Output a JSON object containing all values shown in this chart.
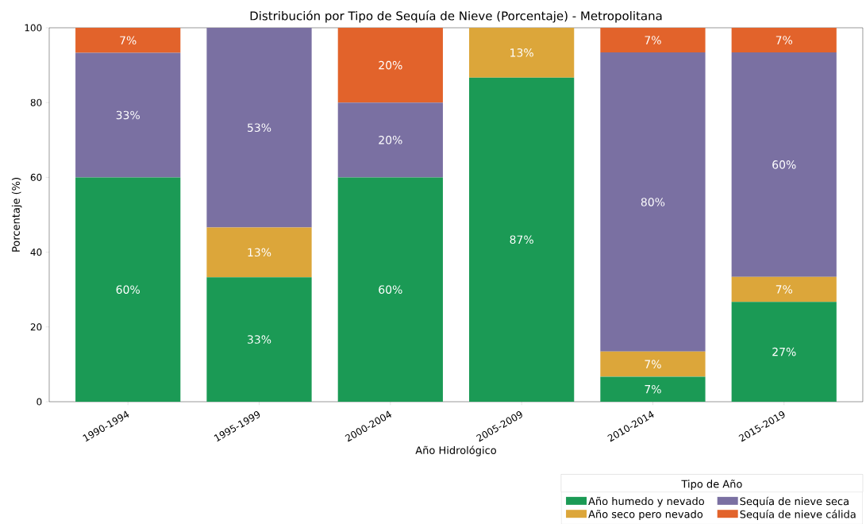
{
  "chart_data": {
    "type": "bar",
    "stacked": true,
    "title": "Distribución por Tipo de Sequía de Nieve (Porcentaje) - Metropolitana",
    "xlabel": "Año Hidrológico",
    "ylabel": "Porcentaje (%)",
    "legend_title": "Tipo de Año",
    "categories": [
      "1990-1994",
      "1995-1999",
      "2000-2004",
      "2005-2009",
      "2010-2014",
      "2015-2019"
    ],
    "series": [
      {
        "name": "Año humedo y nevado",
        "color": "#1b9a55",
        "values": [
          60,
          33.3,
          60,
          86.7,
          6.7,
          26.7
        ],
        "value_labels": [
          "60%",
          "33%",
          "60%",
          "87%",
          "7%",
          "27%"
        ]
      },
      {
        "name": "Año seco pero nevado",
        "color": "#dca63a",
        "values": [
          0,
          13.3,
          0,
          13.3,
          6.7,
          6.7
        ],
        "value_labels": [
          null,
          "13%",
          null,
          "13%",
          "7%",
          "7%"
        ]
      },
      {
        "name": "Sequía de nieve seca",
        "color": "#7a70a2",
        "values": [
          33.3,
          53.4,
          20,
          0,
          80,
          60
        ],
        "value_labels": [
          "33%",
          "53%",
          "20%",
          null,
          "80%",
          "60%"
        ]
      },
      {
        "name": "Sequía de nieve cálida",
        "color": "#e2632b",
        "values": [
          6.7,
          0,
          20,
          0,
          6.6,
          6.6
        ],
        "value_labels": [
          "7%",
          null,
          "20%",
          null,
          "7%",
          "7%"
        ]
      }
    ],
    "ylim": [
      0,
      100
    ],
    "yticks": [
      0,
      20,
      40,
      60,
      80,
      100
    ],
    "legend": "bottom right",
    "grid": false
  }
}
